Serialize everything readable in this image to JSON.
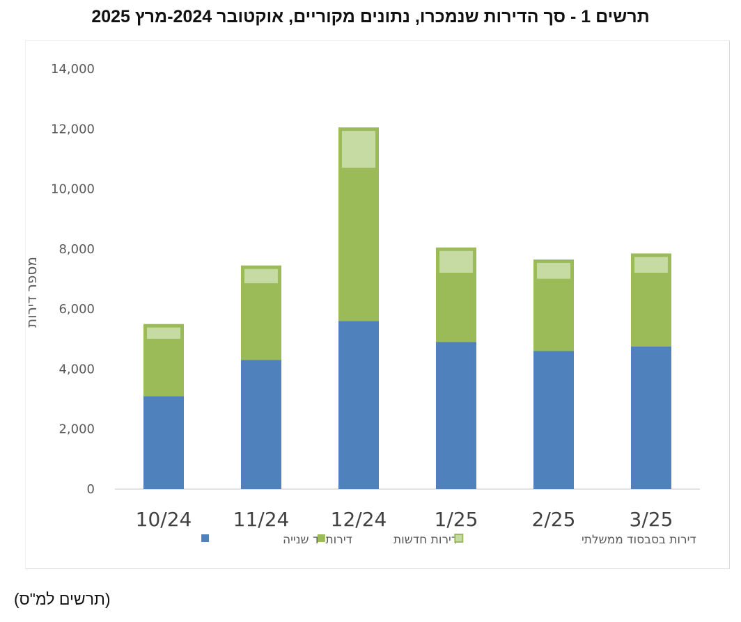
{
  "title": "תרשים 1 - סך הדירות שנמכרו, נתונים מקוריים, אוקטובר 2024-מרץ 2025",
  "footnote": "(תרשים למ\"ס)",
  "colors": {
    "second_hand": "#4f81bd",
    "new": "#9bbb59",
    "subsidized": "#c6dba4",
    "subsidized_border": "#9bbb59",
    "axis_text": "#595959",
    "axis_line": "#d9d9d9"
  },
  "chart_data": {
    "type": "bar",
    "stacked": true,
    "title": "תרשים 1 - סך הדירות שנמכרו, נתונים מקוריים, אוקטובר 2024-מרץ 2025",
    "xlabel": "",
    "ylabel": "מספר דירות",
    "ylim": [
      0,
      14000
    ],
    "yticks": [
      0,
      2000,
      4000,
      6000,
      8000,
      10000,
      12000,
      14000
    ],
    "ytick_labels": [
      "0",
      "2,000",
      "4,000",
      "6,000",
      "8,000",
      "10,000",
      "12,000",
      "14,000"
    ],
    "grid": false,
    "legend_position": "bottom",
    "categories": [
      "10/24",
      "11/24",
      "12/24",
      "1/25",
      "2/25",
      "3/25"
    ],
    "series": [
      {
        "name": "דירות יד שנייה",
        "color": "#4f81bd",
        "values": [
          3100,
          4300,
          5600,
          4900,
          4600,
          4750
        ]
      },
      {
        "name": "דירות חדשות",
        "color": "#9bbb59",
        "values": [
          1850,
          2500,
          5050,
          2250,
          2350,
          2400
        ]
      },
      {
        "name": "דירות בסבסוד ממשלתי",
        "color": "#c6dba4",
        "values": [
          550,
          650,
          1400,
          900,
          700,
          700
        ]
      }
    ]
  }
}
